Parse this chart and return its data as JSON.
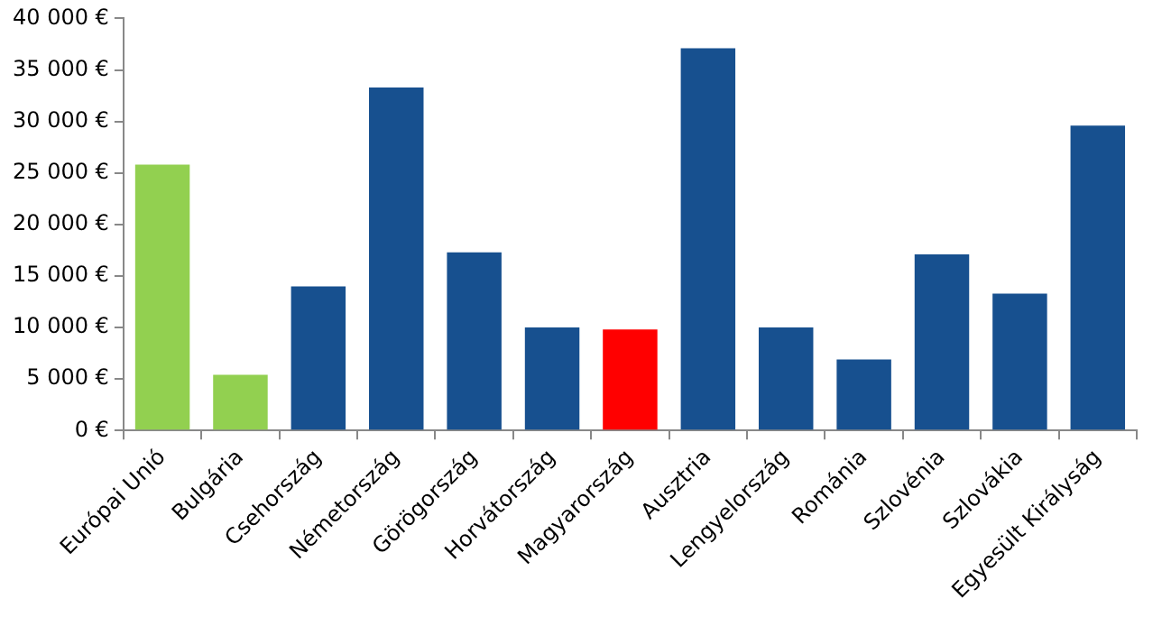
{
  "chart_data": {
    "type": "bar",
    "categories": [
      "Európai Unió",
      "Bulgária",
      "Csehország",
      "Németország",
      "Görögország",
      "Horvátország",
      "Magyarország",
      "Ausztria",
      "Lengyelország",
      "Románia",
      "Szlovénia",
      "Szlovákia",
      "Egyesült Királyság"
    ],
    "values": [
      25800,
      5400,
      14000,
      33300,
      17300,
      10000,
      9800,
      37100,
      10000,
      6900,
      17100,
      13300,
      29600
    ],
    "colors": [
      "#92d050",
      "#92d050",
      "#17508f",
      "#17508f",
      "#17508f",
      "#17508f",
      "#ff0000",
      "#17508f",
      "#17508f",
      "#17508f",
      "#17508f",
      "#17508f",
      "#17508f"
    ],
    "ylim": [
      0,
      40000
    ],
    "yticks": [
      {
        "value": 0,
        "label": "0 €"
      },
      {
        "value": 5000,
        "label": "5 000 €"
      },
      {
        "value": 10000,
        "label": "10 000 €"
      },
      {
        "value": 15000,
        "label": "15 000 €"
      },
      {
        "value": 20000,
        "label": "20 000 €"
      },
      {
        "value": 25000,
        "label": "25 000 €"
      },
      {
        "value": 30000,
        "label": "30 000 €"
      },
      {
        "value": 35000,
        "label": "35 000 €"
      },
      {
        "value": 40000,
        "label": "40 000 €"
      }
    ],
    "grid": false,
    "legend": false
  }
}
